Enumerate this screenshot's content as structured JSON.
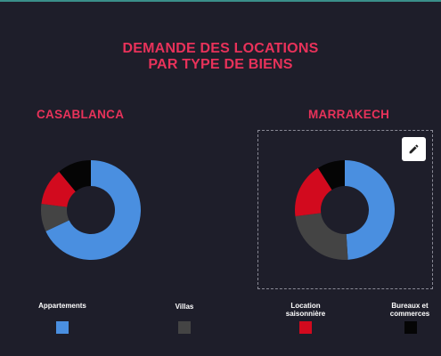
{
  "title": {
    "line1": "DEMANDE DES LOCATIONS",
    "line2": "PAR TYPE DE BIENS"
  },
  "edit_icon": "pencil-icon",
  "colors": {
    "title": "#e8325a",
    "background": "#1e1e2a",
    "Appartements": "#4a8fe0",
    "Villas": "#444444",
    "Location saisonnière": "#d20a1e",
    "Bureaux et commerces": "#050505"
  },
  "legend": [
    {
      "label_lines": [
        "Appartements"
      ],
      "color": "#4a8fe0"
    },
    {
      "label_lines": [
        "Villas"
      ],
      "color": "#444444"
    },
    {
      "label_lines": [
        "Location",
        "saisonnière"
      ],
      "color": "#d20a1e"
    },
    {
      "label_lines": [
        "Bureaux et",
        "commerces"
      ],
      "color": "#050505"
    }
  ],
  "chart_data": [
    {
      "type": "pie",
      "subtype": "donut",
      "title": "CASABLANCA",
      "categories": [
        "Appartements",
        "Villas",
        "Location saisonnière",
        "Bureaux et commerces"
      ],
      "values": [
        68,
        9,
        12,
        11
      ],
      "legend_position": "bottom"
    },
    {
      "type": "pie",
      "subtype": "donut",
      "title": "MARRAKECH",
      "categories": [
        "Appartements",
        "Villas",
        "Location saisonnière",
        "Bureaux et commerces"
      ],
      "values": [
        49,
        24,
        18,
        9
      ],
      "legend_position": "bottom"
    }
  ]
}
